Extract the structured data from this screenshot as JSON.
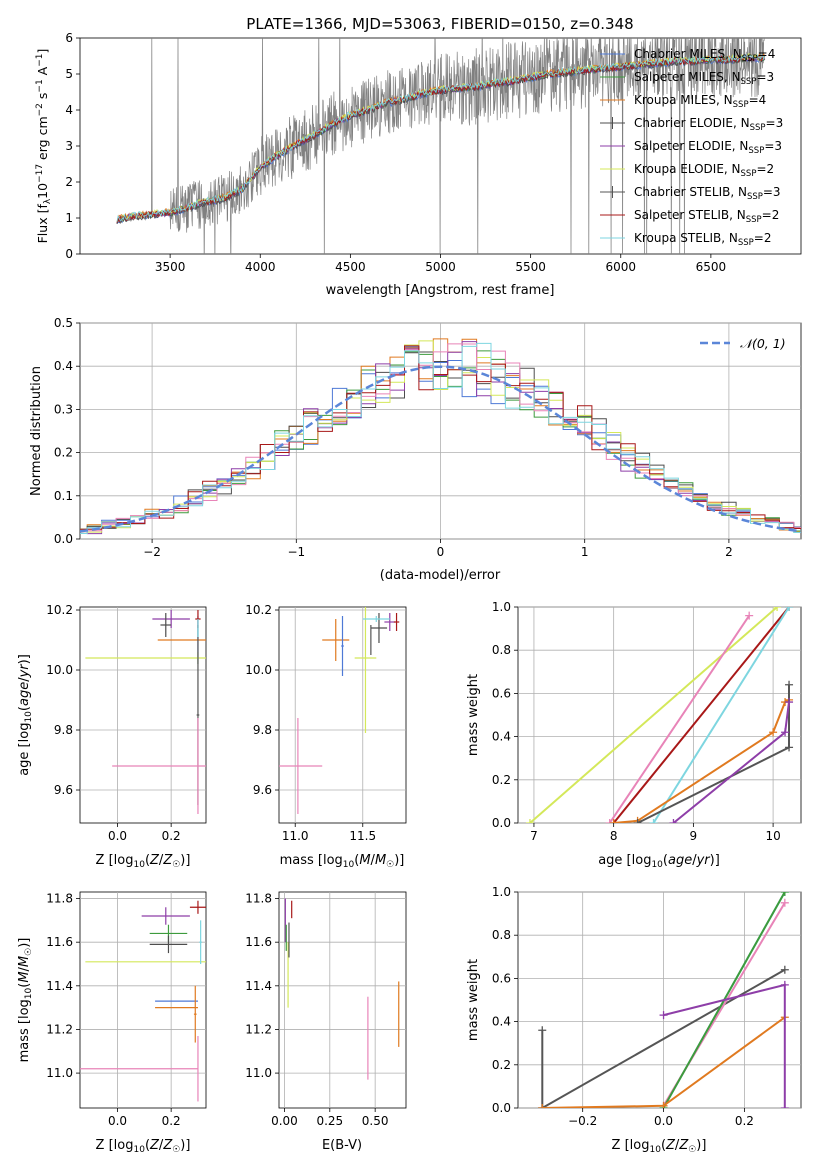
{
  "figure": {
    "title": "PLATE=1366, MJD=53063, FIBERID=0150, z=0.348"
  },
  "colors": {
    "Chabrier MILES": "#4e79d6",
    "Salpeter MILES": "#3d9b3d",
    "Kroupa MILES": "#e07a20",
    "Chabrier ELODIE": "#4d4d4d",
    "Salpeter ELODIE": "#8e3ea8",
    "Kroupa ELODIE": "#d4e85a",
    "Chabrier STELIB": "#555555",
    "Salpeter STELIB": "#a81818",
    "Kroupa STELIB": "#7ed6e0",
    "pink": "#e884b8",
    "data": "#808080",
    "normal": "#5b86d8",
    "grid": "#b0b0b0"
  },
  "chart_data": [
    {
      "id": "spectrum",
      "type": "line",
      "xlabel": "wavelength [Angstrom, rest frame]",
      "ylabel_main": "Flux [f",
      "ylabel_sub": "λ",
      "ylabel_rest": "10",
      "ylabel_exp": "−17",
      "ylabel_units": " erg cm",
      "ylabel_exp2": "−2",
      "ylabel_units2": " s",
      "ylabel_exp3": "−1",
      "ylabel_units3": " A",
      "ylabel_exp4": "−1",
      "ylabel_end": "]",
      "xlim": [
        3000,
        7000
      ],
      "ylim": [
        0,
        6
      ],
      "xticks": [
        3500,
        4000,
        4500,
        5000,
        5500,
        6000,
        6500
      ],
      "yticks": [
        0,
        1,
        2,
        3,
        4,
        5,
        6
      ],
      "grid": false,
      "legend_position": "top-right",
      "model_x": [
        3200,
        3300,
        3400,
        3500,
        3600,
        3700,
        3800,
        3900,
        4000,
        4100,
        4200,
        4300,
        4400,
        4500,
        4600,
        4700,
        4800,
        4900,
        5000,
        5100,
        5200,
        5300,
        5400,
        5500,
        5600,
        5700,
        5800,
        5900,
        6000,
        6100,
        6200,
        6300,
        6400,
        6500,
        6600,
        6700,
        6800
      ],
      "model_y": [
        0.95,
        1.05,
        1.1,
        1.15,
        1.3,
        1.45,
        1.55,
        1.8,
        2.4,
        2.75,
        3.05,
        3.3,
        3.6,
        3.85,
        4.0,
        4.2,
        4.3,
        4.45,
        4.55,
        4.6,
        4.65,
        4.75,
        4.8,
        4.9,
        5.0,
        5.05,
        5.1,
        5.15,
        5.2,
        5.25,
        5.3,
        5.35,
        5.35,
        5.4,
        5.4,
        5.45,
        5.45
      ],
      "series": [
        {
          "name": "Chabrier MILES",
          "n_ssp": "4"
        },
        {
          "name": "Salpeter MILES",
          "n_ssp": "3"
        },
        {
          "name": "Kroupa MILES",
          "n_ssp": "4"
        },
        {
          "name": "Chabrier ELODIE",
          "n_ssp": "3"
        },
        {
          "name": "Salpeter ELODIE",
          "n_ssp": "3"
        },
        {
          "name": "Kroupa ELODIE",
          "n_ssp": "2"
        },
        {
          "name": "Chabrier STELIB",
          "n_ssp": "3"
        },
        {
          "name": "Salpeter STELIB",
          "n_ssp": "2"
        },
        {
          "name": "Kroupa STELIB",
          "n_ssp": "2"
        }
      ]
    },
    {
      "id": "residuals",
      "type": "histogram",
      "xlabel": "(data-model)/error",
      "ylabel": "Normed distribution",
      "xlim": [
        -2.5,
        2.5
      ],
      "ylim": [
        0,
        0.5
      ],
      "xticks": [
        -2,
        -1,
        0,
        1,
        2
      ],
      "yticks": [
        0.0,
        0.1,
        0.2,
        0.3,
        0.4,
        0.5
      ],
      "grid": true,
      "legend_position": "top-right",
      "legend_label": "𝒩(0, 1)",
      "bin_width": 0.1
    },
    {
      "id": "age_vs_Z",
      "type": "errorbar",
      "xlabel": "Z [log10(Z/Z☉)]",
      "ylabel": "age  [log10(age/yr)]",
      "xlim": [
        -0.14,
        0.33
      ],
      "ylim": [
        9.49,
        10.21
      ],
      "xticks": [
        0.0,
        0.2
      ],
      "yticks": [
        9.6,
        9.8,
        10.0,
        10.2
      ],
      "grid": true
    },
    {
      "id": "age_vs_mass",
      "type": "errorbar",
      "xlabel": "mass [log10(M/M☉)]",
      "ylabel": "",
      "xlim": [
        10.88,
        11.82
      ],
      "ylim": [
        9.49,
        10.21
      ],
      "xticks": [
        11.0,
        11.5
      ],
      "yticks": [
        9.6,
        9.8,
        10.0,
        10.2
      ],
      "grid": true
    },
    {
      "id": "massweight_vs_age",
      "type": "line",
      "xlabel": "age  [log10(age/yr)]",
      "ylabel": "mass weight",
      "xlim": [
        6.8,
        10.35
      ],
      "ylim": [
        0,
        1
      ],
      "xticks": [
        7,
        8,
        9,
        10
      ],
      "yticks": [
        0.0,
        0.2,
        0.4,
        0.6,
        0.8,
        1.0
      ],
      "grid": true
    },
    {
      "id": "mass_vs_Z",
      "type": "errorbar",
      "xlabel": "Z [log10(Z/Z☉)]",
      "ylabel": "mass [log10(M/M☉)]",
      "xlim": [
        -0.14,
        0.33
      ],
      "ylim": [
        10.84,
        11.83
      ],
      "xticks": [
        0.0,
        0.2
      ],
      "yticks": [
        11.0,
        11.2,
        11.4,
        11.6,
        11.8
      ],
      "grid": true
    },
    {
      "id": "mass_vs_ebv",
      "type": "errorbar",
      "xlabel": "E(B-V)",
      "ylabel": "",
      "xlim": [
        -0.03,
        0.67
      ],
      "ylim": [
        10.84,
        11.83
      ],
      "xticks": [
        0.0,
        0.25,
        0.5
      ],
      "yticks": [
        11.0,
        11.2,
        11.4,
        11.6,
        11.8
      ],
      "grid": true
    },
    {
      "id": "massweight_vs_Z",
      "type": "line",
      "xlabel": "Z [log10(Z/Z☉)]",
      "ylabel": "mass weight",
      "xlim": [
        -0.36,
        0.34
      ],
      "ylim": [
        0,
        1
      ],
      "xticks": [
        -0.2,
        0.0,
        0.2
      ],
      "yticks": [
        0.0,
        0.2,
        0.4,
        0.6,
        0.8,
        1.0
      ],
      "grid": true
    }
  ]
}
